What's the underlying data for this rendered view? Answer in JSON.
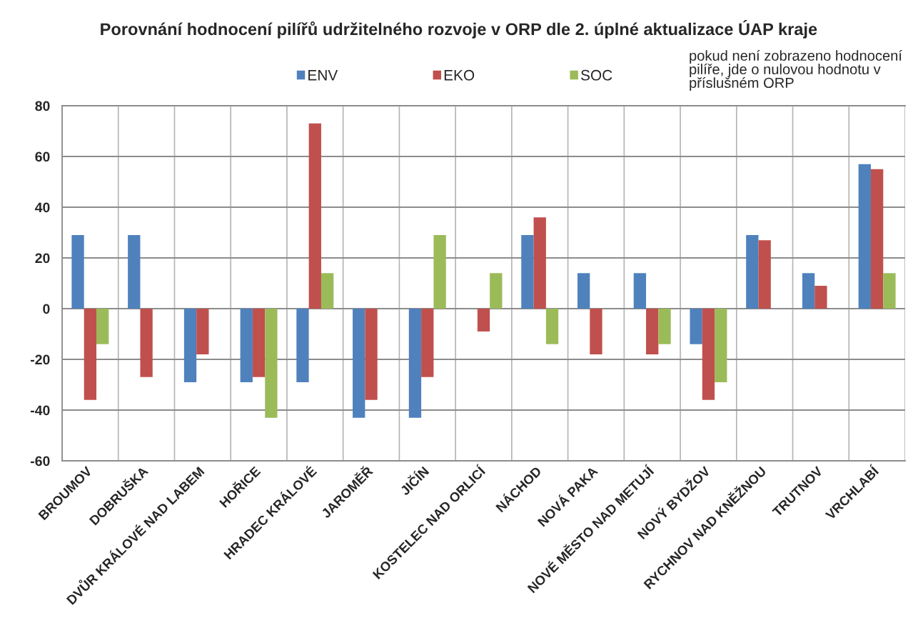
{
  "chart_data": {
    "type": "bar",
    "title": "Porovnání hodnocení pilířů udržitelného rozvoje v ORP dle 2. úplné aktualizace ÚAP kraje",
    "annotations": [
      "pokud není zobrazeno hodnocení pilíře, jde o nulovou hodnotu v příslušném ORP"
    ],
    "categories": [
      "BROUMOV",
      "DOBRUŠKA",
      "DVŮR KRÁLOVÉ NAD LABEM",
      "HOŘICE",
      "HRADEC KRÁLOVÉ",
      "JAROMĚŘ",
      "JIČÍN",
      "KOSTELEC NAD ORLICÍ",
      "NÁCHOD",
      "NOVÁ PAKA",
      "NOVÉ MĚSTO NAD METUJÍ",
      "NOVÝ BYDŽOV",
      "RYCHNOV NAD KNĚŽNOU",
      "TRUTNOV",
      "VRCHLABÍ"
    ],
    "series": [
      {
        "name": "ENV",
        "color": "#4f81bd",
        "values": [
          29,
          29,
          -29,
          -29,
          -29,
          -43,
          -43,
          0,
          29,
          14,
          14,
          -14,
          29,
          14,
          57
        ]
      },
      {
        "name": "EKO",
        "color": "#c0504d",
        "values": [
          -36,
          -27,
          -18,
          -27,
          73,
          -36,
          -27,
          -9,
          36,
          -18,
          -18,
          -36,
          27,
          9,
          55
        ]
      },
      {
        "name": "SOC",
        "color": "#9bbb59",
        "values": [
          -14,
          0,
          0,
          -43,
          14,
          0,
          29,
          14,
          -14,
          0,
          -14,
          -29,
          0,
          0,
          14
        ]
      }
    ],
    "ylim": [
      -60,
      80
    ],
    "yticks": [
      -60,
      -40,
      -20,
      0,
      20,
      40,
      60,
      80
    ],
    "grid": true,
    "legend": "top"
  }
}
